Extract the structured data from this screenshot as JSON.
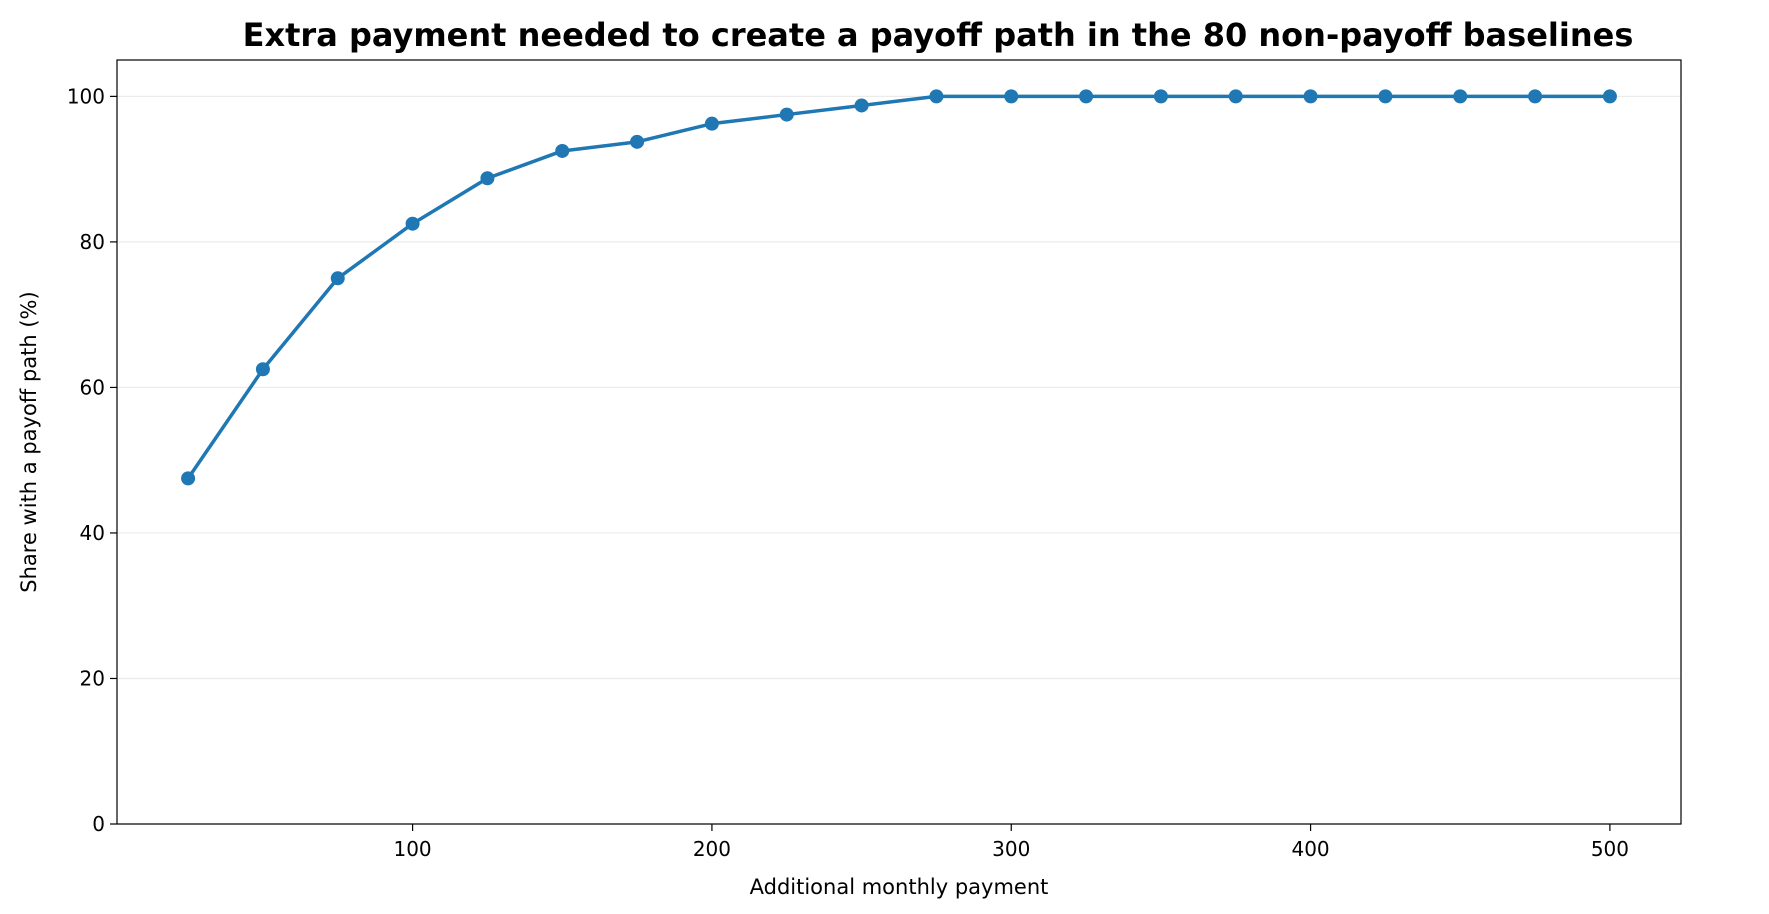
{
  "chart_data": {
    "type": "line",
    "title": "Extra payment needed to create a payoff path in the 80 non-payoff baselines",
    "x_label": "Additional monthly payment",
    "y_label": "Share with a payoff path (%)",
    "x": [
      25,
      50,
      75,
      100,
      125,
      150,
      175,
      200,
      225,
      250,
      275,
      300,
      325,
      350,
      375,
      400,
      425,
      450,
      475,
      500
    ],
    "series": [
      {
        "name": "Share with a payoff path",
        "color": "#1f77b4",
        "values": [
          47.5,
          62.5,
          75,
          82.5,
          88.75,
          92.5,
          93.75,
          96.25,
          97.5,
          98.75,
          100,
          100,
          100,
          100,
          100,
          100,
          100,
          100,
          100,
          100
        ]
      }
    ],
    "xlim": [
      1.25,
      523.75
    ],
    "xticks": [
      100,
      200,
      300,
      400,
      500
    ],
    "ylim": [
      0,
      105
    ],
    "yticks": [
      0,
      20,
      40,
      60,
      80,
      100
    ],
    "grid": true
  }
}
